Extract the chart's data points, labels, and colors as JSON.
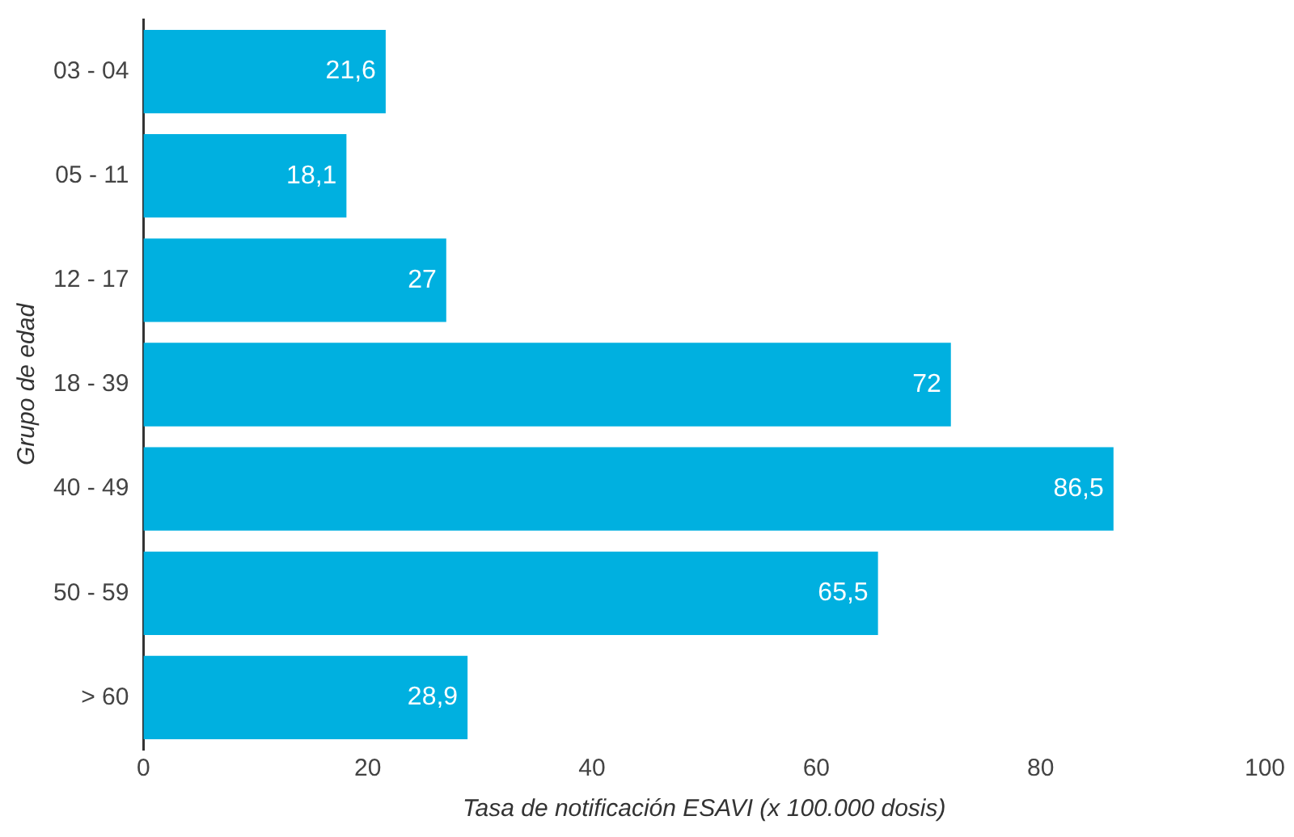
{
  "chart_data": {
    "type": "bar",
    "orientation": "horizontal",
    "categories": [
      "03 - 04",
      "05 - 11",
      "12 - 17",
      "18 - 39",
      "40 - 49",
      "50 - 59",
      "> 60"
    ],
    "values": [
      21.6,
      18.1,
      27,
      72,
      86.5,
      65.5,
      28.9
    ],
    "value_labels": [
      "21,6",
      "18,1",
      "27",
      "72",
      "86,5",
      "65,5",
      "28,9"
    ],
    "color": "#00b0e0",
    "xlabel": "Tasa de notificación ESAVI (x 100.000 dosis)",
    "ylabel": "Grupo de edad",
    "xlim": [
      0,
      100
    ],
    "xticks": [
      0,
      20,
      40,
      60,
      80,
      100
    ],
    "grid": false,
    "legend": false
  }
}
